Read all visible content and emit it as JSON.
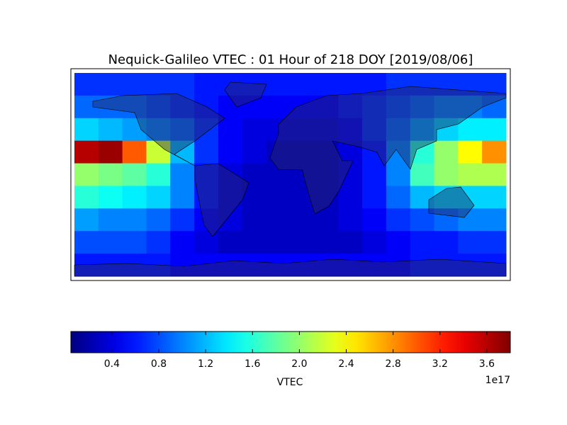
{
  "chart_data": {
    "type": "heatmap",
    "title": "Nequick-Galileo VTEC : 01 Hour of 218 DOY [2019/08/06]",
    "xlim": [
      -180,
      180
    ],
    "ylim": [
      -90,
      90
    ],
    "x": [
      -170,
      -150,
      -130,
      -110,
      -90,
      -70,
      -50,
      -30,
      -10,
      10,
      30,
      50,
      70,
      90,
      110,
      130,
      150,
      170
    ],
    "y": [
      80,
      60,
      40,
      20,
      0,
      -20,
      -40,
      -60,
      -80
    ],
    "z": [
      [
        0.7,
        0.7,
        0.7,
        0.7,
        0.7,
        0.6,
        0.6,
        0.6,
        0.6,
        0.6,
        0.6,
        0.6,
        0.6,
        0.7,
        0.7,
        0.7,
        0.7,
        0.7
      ],
      [
        0.9,
        0.9,
        0.9,
        0.8,
        0.7,
        0.6,
        0.5,
        0.5,
        0.5,
        0.5,
        0.5,
        0.6,
        0.7,
        0.8,
        0.9,
        1.0,
        1.0,
        0.9
      ],
      [
        1.3,
        1.2,
        1.1,
        1.0,
        0.9,
        0.7,
        0.5,
        0.4,
        0.4,
        0.4,
        0.4,
        0.5,
        0.7,
        0.9,
        1.1,
        1.3,
        1.4,
        1.4
      ],
      [
        3.6,
        3.7,
        3.0,
        2.2,
        1.2,
        0.7,
        0.5,
        0.4,
        0.3,
        0.3,
        0.3,
        0.4,
        0.6,
        1.0,
        1.6,
        2.0,
        2.4,
        2.8
      ],
      [
        2.0,
        1.9,
        1.8,
        1.6,
        1.0,
        0.6,
        0.4,
        0.3,
        0.3,
        0.3,
        0.3,
        0.4,
        0.6,
        1.0,
        1.7,
        2.0,
        2.1,
        2.1
      ],
      [
        1.6,
        1.5,
        1.4,
        1.3,
        1.0,
        0.6,
        0.4,
        0.3,
        0.3,
        0.3,
        0.3,
        0.4,
        0.6,
        0.9,
        1.2,
        1.3,
        1.3,
        1.3
      ],
      [
        1.1,
        1.0,
        1.0,
        0.9,
        0.7,
        0.5,
        0.4,
        0.3,
        0.3,
        0.3,
        0.3,
        0.4,
        0.5,
        0.7,
        0.8,
        0.9,
        1.0,
        1.0
      ],
      [
        0.8,
        0.8,
        0.8,
        0.7,
        0.5,
        0.4,
        0.3,
        0.3,
        0.3,
        0.3,
        0.3,
        0.3,
        0.4,
        0.5,
        0.6,
        0.6,
        0.7,
        0.7
      ],
      [
        0.6,
        0.6,
        0.6,
        0.6,
        0.5,
        0.5,
        0.5,
        0.5,
        0.5,
        0.5,
        0.5,
        0.5,
        0.5,
        0.5,
        0.6,
        0.6,
        0.6,
        0.6
      ]
    ],
    "colorbar": {
      "label": "VTEC",
      "offset": "1e17",
      "clim": [
        0.05,
        3.8
      ],
      "ticks": [
        0.4,
        0.8,
        1.2,
        1.6,
        {
          "value": 2,
          "label": "2.0"
        },
        2.4,
        2.8,
        3.2,
        3.6
      ],
      "colormap": "jet"
    }
  }
}
